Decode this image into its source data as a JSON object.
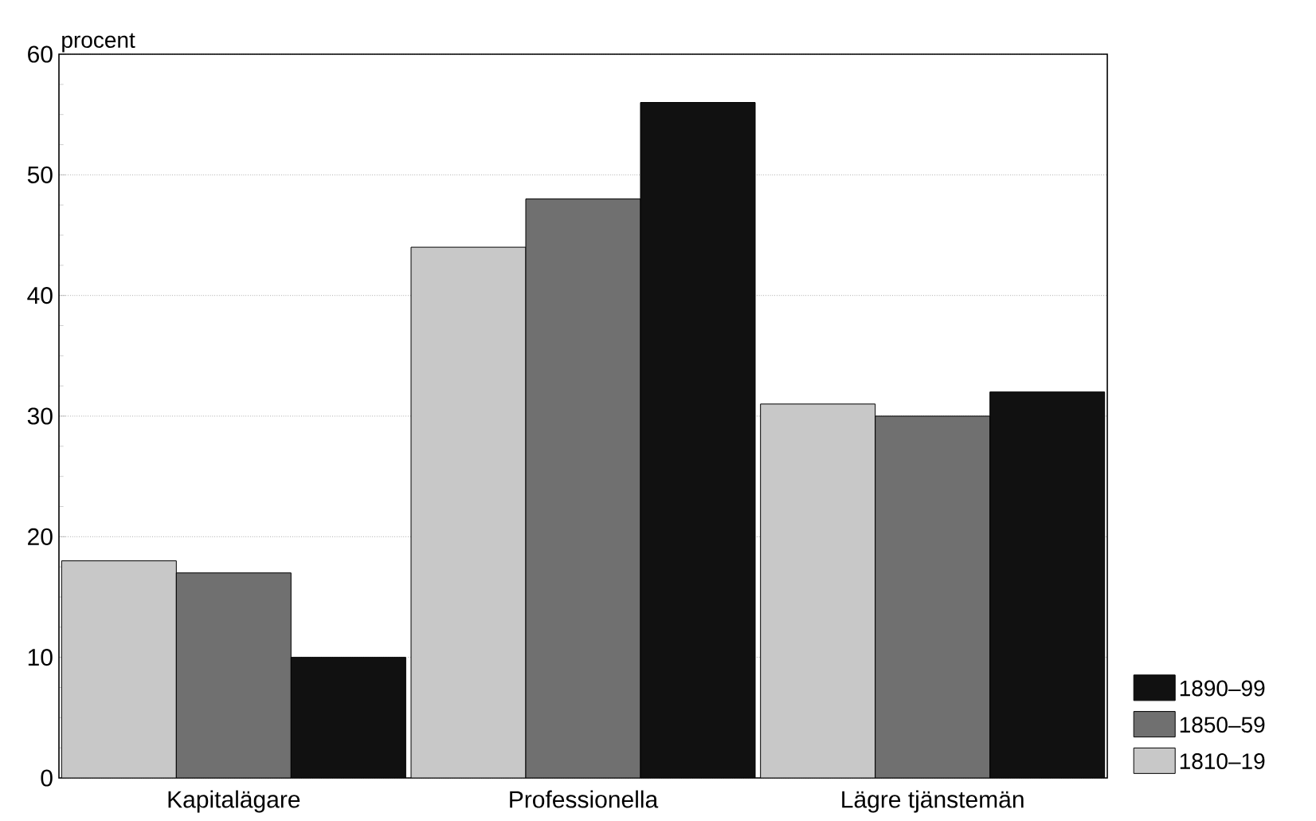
{
  "chart_data": {
    "type": "bar",
    "ylabel": "procent",
    "categories": [
      "Kapitalägare",
      "Professionella",
      "Lägre tjänstemän"
    ],
    "series": [
      {
        "name": "1810–19",
        "color": "#c8c8c8",
        "values": [
          18,
          44,
          31
        ]
      },
      {
        "name": "1850–59",
        "color": "#707070",
        "values": [
          17,
          48,
          30
        ]
      },
      {
        "name": "1890–99",
        "color": "#111111",
        "values": [
          10,
          56,
          32
        ]
      }
    ],
    "ylim": [
      0,
      60
    ],
    "yticks": [
      0,
      10,
      20,
      30,
      40,
      50,
      60
    ],
    "grid": "y",
    "legend": "bottom right"
  }
}
